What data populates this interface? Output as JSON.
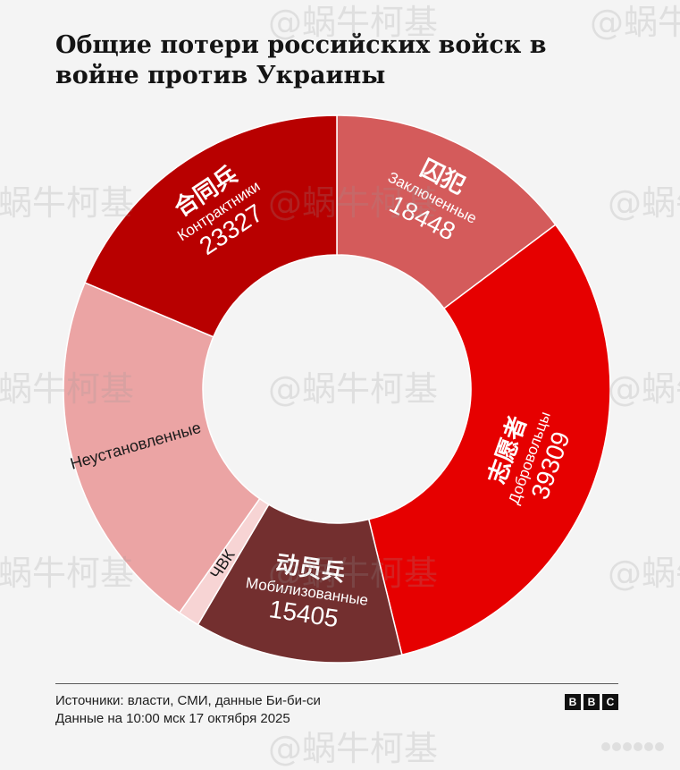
{
  "title": "Общие потери российских войск в войне против Украины",
  "footer": {
    "sources": "Источники: власти, СМИ, данные Би-би-си",
    "date": "Данные на 10:00 мск 17 октября 2025"
  },
  "logo": [
    "B",
    "B",
    "C"
  ],
  "watermark": "@蜗牛柯基",
  "chart_data": {
    "type": "pie",
    "variant": "donut",
    "slices": [
      {
        "label": "Заключенные",
        "label_cn": "囚犯",
        "value": 18448,
        "color": "#d45b5b",
        "value_shown": "18448"
      },
      {
        "label": "Добровольцы",
        "label_cn": "志愿者",
        "value": 39309,
        "color": "#e60000",
        "value_shown": "39309"
      },
      {
        "label": "Мобилизованные",
        "label_cn": "动员兵",
        "value": 15405,
        "color": "#732f2f",
        "value_shown": "15405"
      },
      {
        "label": "ЧВК",
        "label_cn": "",
        "value": 1600,
        "color": "#f7d4d4",
        "value_shown": ""
      },
      {
        "label": "Неустановленные",
        "label_cn": "",
        "value": 27000,
        "color": "#eba4a4",
        "value_shown": ""
      },
      {
        "label": "Контрактники",
        "label_cn": "合同兵",
        "value": 23327,
        "color": "#b80000",
        "value_shown": "23327"
      }
    ]
  }
}
